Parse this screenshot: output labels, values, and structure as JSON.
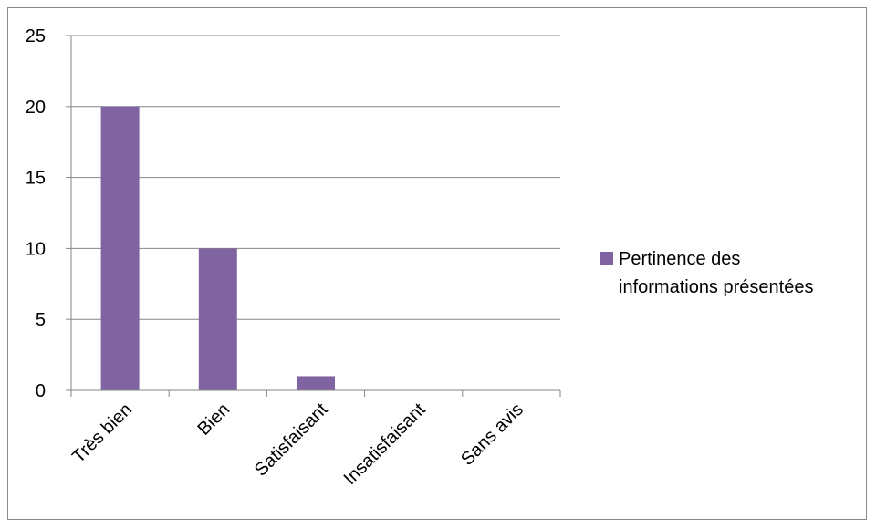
{
  "chart_data": {
    "type": "bar",
    "categories": [
      "Très bien",
      "Bien",
      "Satisfaisant",
      "Insatisfaisant",
      "Sans avis"
    ],
    "series": [
      {
        "name": "Pertinence des informations présentées",
        "values": [
          20,
          10,
          1,
          0,
          0
        ],
        "color": "#8064a2"
      }
    ],
    "yticks": [
      0,
      5,
      10,
      15,
      20,
      25
    ],
    "ylim": [
      0,
      25
    ],
    "grid": true,
    "legend_position": "right",
    "legend_lines": [
      "Pertinence des",
      "informations présentées"
    ]
  }
}
